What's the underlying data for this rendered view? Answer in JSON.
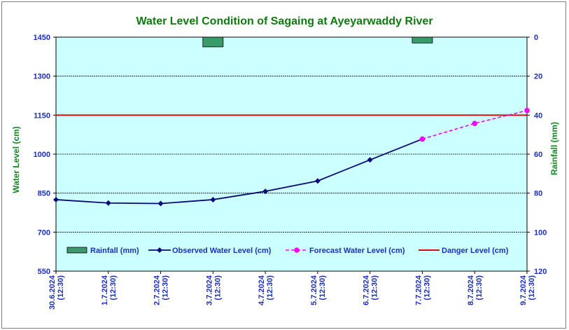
{
  "chart_data": {
    "type": "line",
    "title": "Water Level Condition of Sagaing at Ayeyarwaddy River",
    "ylabel": "Water Level (cm)",
    "y2label": "Rainfall (mm)",
    "ylim": [
      550,
      1450
    ],
    "yticks": [
      550,
      700,
      850,
      1000,
      1150,
      1300,
      1450
    ],
    "y2lim": [
      0,
      120
    ],
    "y2ticks": [
      0,
      20,
      40,
      60,
      80,
      100,
      120
    ],
    "y2_inverted": true,
    "categories": [
      "30.6.2024 (12:30)",
      "1.7.2024 (12:30)",
      "2.7.2024 (12:30)",
      "3.7.2024 (12:30)",
      "4.7.2024 (12:30)",
      "5.7.2024 (12:30)",
      "6.7.2024 (12:30)",
      "7.7.2024 (12:30)",
      "8.7.2024 (12:30)",
      "9.7.2024 (12:30)"
    ],
    "series": [
      {
        "name": "Rainfall (mm)",
        "kind": "bar",
        "axis": "right",
        "color": "#3a9a6a",
        "values": [
          0,
          0,
          0,
          5,
          0,
          0,
          0,
          3,
          0,
          0
        ]
      },
      {
        "name": "Observed Water Level (cm)",
        "kind": "line",
        "color": "#0a0a7a",
        "values": [
          825,
          812,
          810,
          825,
          857,
          897,
          978,
          1058,
          null,
          null
        ]
      },
      {
        "name": "Forecast Water Level (cm)",
        "kind": "dashed",
        "color": "#ff00ff",
        "values": [
          null,
          null,
          null,
          null,
          null,
          null,
          null,
          1058,
          1118,
          1168
        ]
      },
      {
        "name": "Danger Level (cm)",
        "kind": "hline",
        "color": "#d01010",
        "value": 1150
      }
    ],
    "grid": true,
    "legend_position": "bottom-inside",
    "colors": {
      "plot_bg": "#ccffff",
      "tick_text": "#1a2fbf",
      "axis_label": "#0f8a1f",
      "title": "#0f7a0f"
    }
  }
}
